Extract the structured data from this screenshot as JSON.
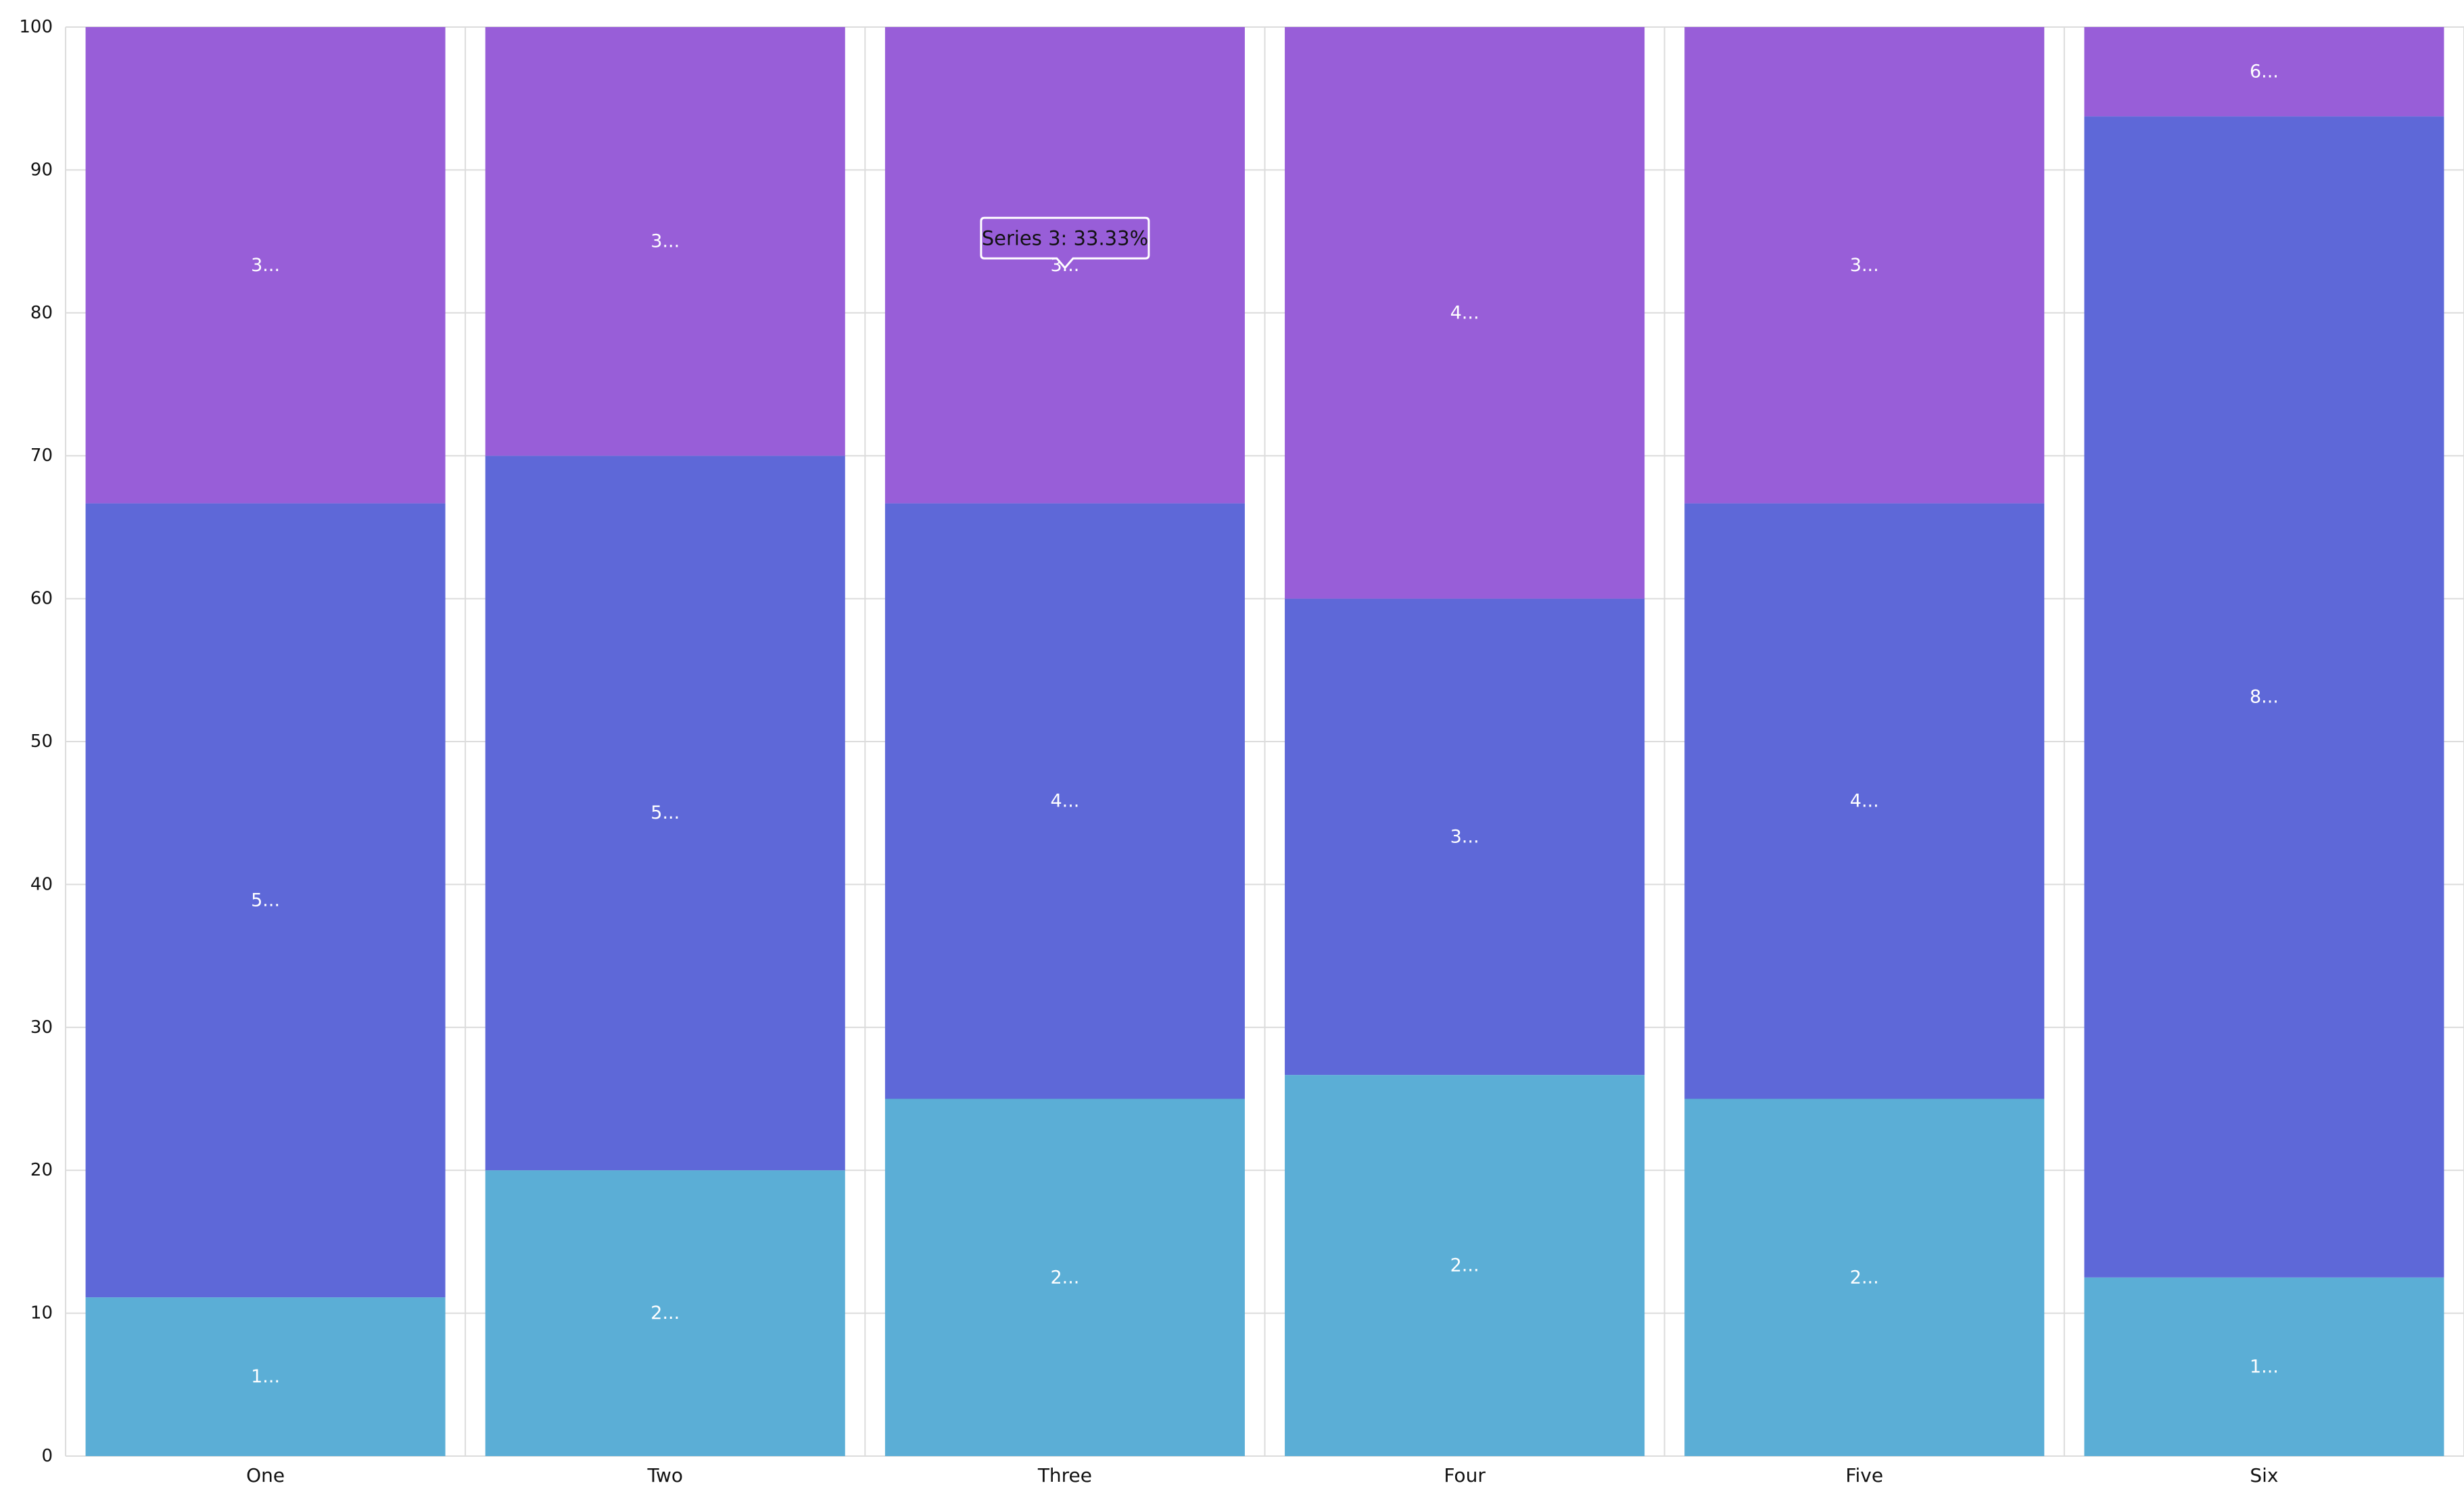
{
  "chart_data": {
    "type": "bar",
    "stacked": true,
    "normalized_percent": true,
    "categories": [
      "One",
      "Two",
      "Three",
      "Four",
      "Five",
      "Six"
    ],
    "series": [
      {
        "color": "#5baed6",
        "values": [
          11.11,
          20,
          25,
          26.67,
          25,
          12.5
        ],
        "labels": [
          "1...",
          "2...",
          "2...",
          "2...",
          "2...",
          "1..."
        ]
      },
      {
        "color": "#5e68d8",
        "values": [
          55.56,
          50,
          41.67,
          33.33,
          41.67,
          81.25
        ],
        "labels": [
          "5...",
          "5...",
          "4...",
          "3...",
          "4...",
          "8..."
        ]
      },
      {
        "color": "#985ed8",
        "values": [
          33.33,
          30,
          33.33,
          40,
          33.33,
          6.25
        ],
        "labels": [
          "3...",
          "3...",
          "3...",
          "4...",
          "3...",
          "6..."
        ]
      }
    ],
    "ylim": [
      0,
      100
    ],
    "yticks": [
      "0",
      "10",
      "20",
      "30",
      "40",
      "50",
      "60",
      "70",
      "80",
      "90",
      "100"
    ],
    "grid": true,
    "legend": "none",
    "tooltip": {
      "text": "Series 3: 33.33%",
      "category_index": 2,
      "series_index": 2
    }
  }
}
